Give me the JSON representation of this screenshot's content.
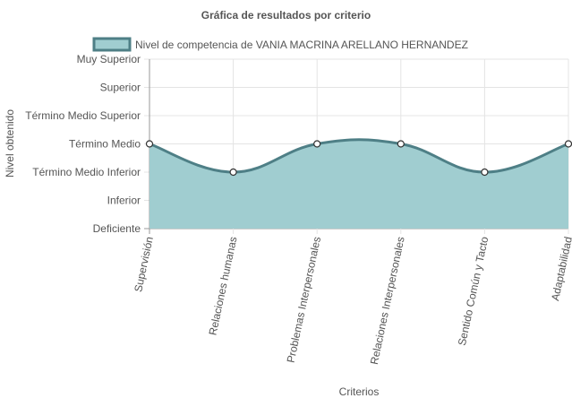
{
  "chart_data": {
    "type": "area",
    "title": "Gráfica de resultados por criterio",
    "xlabel": "Criterios",
    "ylabel": "Nivel obtenido",
    "categories": [
      "Supervisión",
      "Relaciones humanas",
      "Problemas Interpersonales",
      "Relaciones Interpersonales",
      "Sentido Común y Tacto",
      "Adaptabilidad"
    ],
    "y_levels": [
      "Deficiente",
      "Inferior",
      "Término Medio Inferior",
      "Término Medio",
      "Término Medio Superior",
      "Superior",
      "Muy Superior"
    ],
    "series": [
      {
        "name": "Nivel de competencia de VANIA MACRINA ARELLANO HERNANDEZ",
        "values": [
          3,
          2,
          3,
          3,
          2,
          3
        ],
        "value_labels": [
          "Término Medio",
          "Término Medio Inferior",
          "Término Medio",
          "Término Medio",
          "Término Medio Inferior",
          "Término Medio"
        ]
      }
    ],
    "ylim": [
      0,
      6
    ],
    "grid": true,
    "legend_position": "top",
    "colors": {
      "fill": "#a0cdd0",
      "line": "#4e7f86",
      "grid": "#e4e4e4",
      "axis": "#999999",
      "text": "#555555",
      "point_fill": "#ffffff",
      "point_stroke": "#333333"
    }
  }
}
